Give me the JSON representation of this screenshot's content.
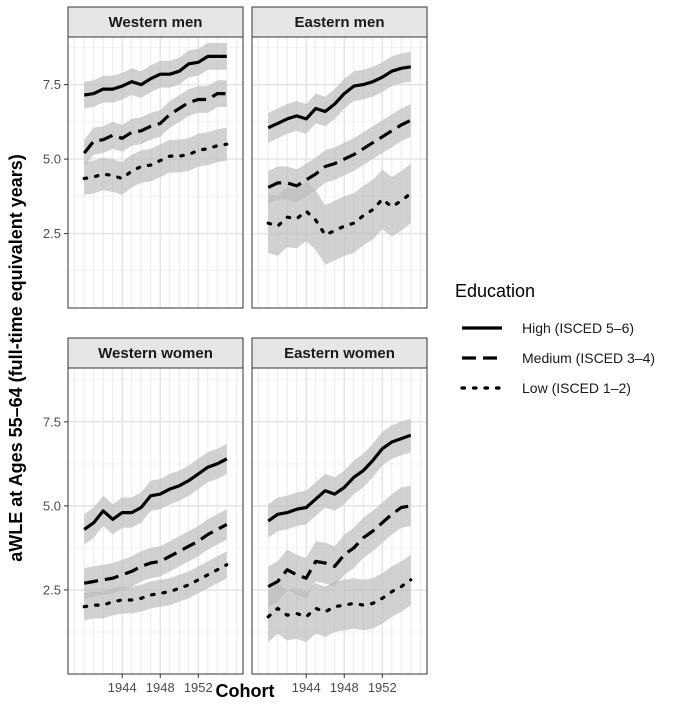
{
  "chart_data": {
    "type": "line",
    "xlabel": "Cohort",
    "ylabel": "aWLE at Ages 55–64 (full-time equivalent years)",
    "x": [
      1940,
      1941,
      1942,
      1943,
      1944,
      1945,
      1946,
      1947,
      1948,
      1949,
      1950,
      1951,
      1952,
      1953,
      1954,
      1955
    ],
    "xlim": [
      1938.3,
      1956.7
    ],
    "ylim": [
      0,
      9.1
    ],
    "xticks": [
      "1944",
      "1948",
      "1952"
    ],
    "yticks": [
      "2.5",
      "5.0",
      "7.5"
    ],
    "grid": true,
    "legend": {
      "title": "Education",
      "position": "right",
      "entries": [
        "High (ISCED 5–6)",
        "Medium (ISCED 3–4)",
        "Low (ISCED 1–2)"
      ]
    },
    "panels": [
      {
        "title": "Western men",
        "series": [
          {
            "name": "High (ISCED 5–6)",
            "linetype": "solid",
            "values": [
              7.15,
              7.2,
              7.35,
              7.35,
              7.45,
              7.6,
              7.5,
              7.7,
              7.85,
              7.85,
              7.95,
              8.2,
              8.25,
              8.45,
              8.45,
              8.45
            ],
            "ci_halfwidth": 0.45
          },
          {
            "name": "Medium (ISCED 3–4)",
            "linetype": "dashed",
            "values": [
              5.2,
              5.6,
              5.65,
              5.8,
              5.7,
              5.9,
              5.95,
              6.1,
              6.2,
              6.5,
              6.7,
              6.9,
              7.0,
              7.0,
              7.2,
              7.2
            ],
            "ci_halfwidth": 0.45
          },
          {
            "name": "Low (ISCED 1–2)",
            "linetype": "dotted",
            "values": [
              4.35,
              4.4,
              4.5,
              4.45,
              4.35,
              4.6,
              4.75,
              4.8,
              4.95,
              5.1,
              5.1,
              5.15,
              5.3,
              5.35,
              5.45,
              5.5
            ],
            "ci_halfwidth": 0.55
          }
        ]
      },
      {
        "title": "Eastern men",
        "series": [
          {
            "name": "High (ISCED 5–6)",
            "linetype": "solid",
            "values": [
              6.05,
              6.2,
              6.35,
              6.45,
              6.35,
              6.7,
              6.6,
              6.85,
              7.2,
              7.45,
              7.5,
              7.6,
              7.75,
              7.95,
              8.05,
              8.1
            ],
            "ci_halfwidth": 0.5
          },
          {
            "name": "Medium (ISCED 3–4)",
            "linetype": "dashed",
            "values": [
              4.05,
              4.2,
              4.2,
              4.1,
              4.3,
              4.5,
              4.75,
              4.85,
              5.0,
              5.15,
              5.35,
              5.55,
              5.75,
              5.95,
              6.15,
              6.3
            ],
            "ci_halfwidth": 0.55
          },
          {
            "name": "Low (ISCED 1–2)",
            "linetype": "dotted",
            "values": [
              2.85,
              2.75,
              3.05,
              3.0,
              3.25,
              2.95,
              2.45,
              2.6,
              2.75,
              2.85,
              3.1,
              3.3,
              3.65,
              3.4,
              3.6,
              3.85
            ],
            "ci_halfwidth": 1.0
          }
        ]
      },
      {
        "title": "Western women",
        "series": [
          {
            "name": "High (ISCED 5–6)",
            "linetype": "solid",
            "values": [
              4.3,
              4.5,
              4.85,
              4.6,
              4.8,
              4.8,
              4.95,
              5.3,
              5.35,
              5.5,
              5.6,
              5.75,
              5.95,
              6.15,
              6.25,
              6.4
            ],
            "ci_halfwidth": 0.45
          },
          {
            "name": "Medium (ISCED 3–4)",
            "linetype": "dashed",
            "values": [
              2.7,
              2.75,
              2.8,
              2.85,
              2.95,
              3.05,
              3.2,
              3.3,
              3.35,
              3.5,
              3.65,
              3.8,
              3.95,
              4.15,
              4.3,
              4.45
            ],
            "ci_halfwidth": 0.45
          },
          {
            "name": "Low (ISCED 1–2)",
            "linetype": "dotted",
            "values": [
              2.0,
              2.05,
              2.05,
              2.15,
              2.2,
              2.2,
              2.25,
              2.35,
              2.4,
              2.45,
              2.55,
              2.65,
              2.8,
              2.95,
              3.1,
              3.25
            ],
            "ci_halfwidth": 0.4
          }
        ]
      },
      {
        "title": "Eastern women",
        "series": [
          {
            "name": "High (ISCED 5–6)",
            "linetype": "solid",
            "values": [
              4.55,
              4.75,
              4.8,
              4.9,
              4.95,
              5.2,
              5.45,
              5.35,
              5.55,
              5.85,
              6.05,
              6.35,
              6.7,
              6.9,
              7.0,
              7.1
            ],
            "ci_halfwidth": 0.5
          },
          {
            "name": "Medium (ISCED 3–4)",
            "linetype": "dashed",
            "values": [
              2.6,
              2.75,
              3.1,
              2.95,
              2.85,
              3.35,
              3.3,
              3.2,
              3.55,
              3.75,
              4.05,
              4.25,
              4.5,
              4.75,
              4.95,
              5.0
            ],
            "ci_halfwidth": 0.6
          },
          {
            "name": "Low (ISCED 1–2)",
            "linetype": "dotted",
            "values": [
              1.7,
              1.95,
              1.75,
              1.8,
              1.7,
              1.95,
              1.85,
              2.0,
              2.05,
              2.1,
              2.05,
              2.1,
              2.25,
              2.45,
              2.6,
              2.8
            ],
            "ci_halfwidth": 0.75
          }
        ]
      }
    ]
  }
}
